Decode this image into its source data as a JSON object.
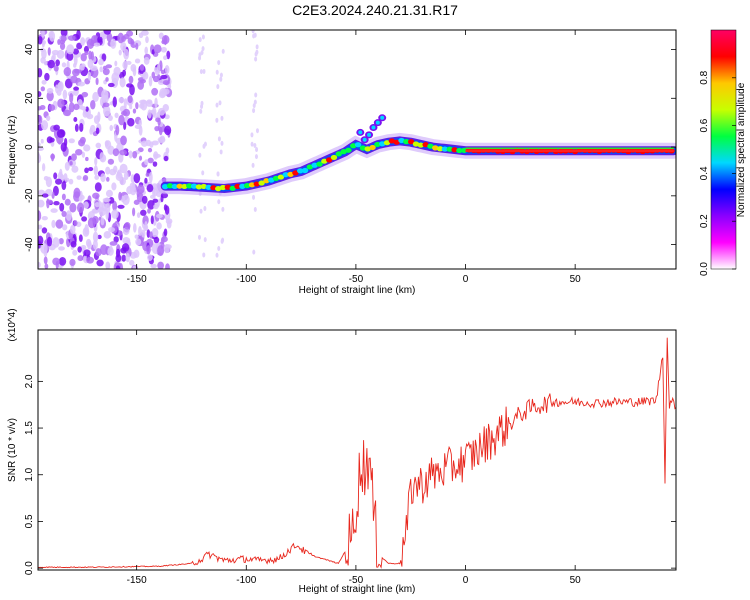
{
  "title": "C2E3.2024.240.21.31.R17",
  "chart_data": [
    {
      "type": "heatmap",
      "xlabel": "Height of straight line (km)",
      "ylabel": "Frequency (Hz)",
      "xlim": [
        -195,
        96
      ],
      "ylim": [
        -50,
        48
      ],
      "x_ticks": [
        -150,
        -100,
        -50,
        0,
        50
      ],
      "y_ticks": [
        -40,
        -20,
        0,
        20,
        40
      ],
      "grid": false,
      "colorbar": {
        "label": "Normalized spectral amplitude",
        "range": [
          0.0,
          1.0
        ],
        "ticks": [
          "0.0",
          "0.2",
          "0.4",
          "0.6",
          "0.8"
        ],
        "colormap": [
          "#ffffff",
          "#ff00ff",
          "#8a00ff",
          "#0000ff",
          "#00d8ff",
          "#00ff40",
          "#c8ff00",
          "#ffc800",
          "#ff0000",
          "#ff0064"
        ]
      },
      "ridge": {
        "x": [
          -137,
          -130,
          -120,
          -110,
          -100,
          -95,
          -90,
          -85,
          -80,
          -75,
          -70,
          -65,
          -60,
          -55,
          -50,
          -45,
          -40,
          -35,
          -30,
          -25,
          -20,
          -15,
          -10,
          -5,
          0,
          10,
          20,
          40,
          60,
          80,
          95
        ],
        "y": [
          -16,
          -16,
          -16.5,
          -17,
          -16,
          -15,
          -14,
          -12.5,
          -11,
          -10,
          -8,
          -6,
          -4,
          -2,
          1,
          -1,
          1,
          2,
          2.5,
          2,
          1,
          0,
          -0.5,
          -1,
          -1.5,
          -1.5,
          -1.5,
          -1.5,
          -1.5,
          -1.5,
          -1.5
        ]
      },
      "noise_region_x": [
        -195,
        -135
      ]
    },
    {
      "type": "line",
      "xlabel": "Height of straight line (km)",
      "ylabel": "SNR (10 * v/v)",
      "y_multiplier": "(x10^4)",
      "xlim": [
        -195,
        96
      ],
      "ylim": [
        -0.02,
        2.55
      ],
      "x_ticks": [
        -150,
        -100,
        -50,
        0,
        50
      ],
      "y_ticks": [
        0.0,
        0.5,
        1.0,
        1.5,
        2.0
      ],
      "color": "#e8281e",
      "series": [
        {
          "x": [
            -195,
            -170,
            -140,
            -125,
            -120,
            -117,
            -110,
            -100,
            -95,
            -85,
            -80,
            -77,
            -72,
            -65,
            -58,
            -52,
            -50,
            -48,
            -46,
            -44,
            -42,
            -40,
            -35,
            -30,
            -27,
            -25,
            -22,
            -20,
            -15,
            -10,
            -5,
            0,
            5,
            10,
            15,
            20,
            25,
            30,
            35,
            40,
            50,
            60,
            70,
            80,
            87,
            90,
            91,
            92,
            93,
            95,
            96
          ],
          "y": [
            0.01,
            0.01,
            0.02,
            0.05,
            0.1,
            0.15,
            0.08,
            0.1,
            0.08,
            0.1,
            0.2,
            0.25,
            0.15,
            0.1,
            0.05,
            0.3,
            0.7,
            1.05,
            1.1,
            1.2,
            0.6,
            0.15,
            0.05,
            0.05,
            0.35,
            0.85,
            0.9,
            0.9,
            1.0,
            1.05,
            1.1,
            1.15,
            1.25,
            1.35,
            1.45,
            1.55,
            1.65,
            1.72,
            1.75,
            1.78,
            1.78,
            1.77,
            1.78,
            1.78,
            1.8,
            2.3,
            0.95,
            2.45,
            1.75,
            1.78,
            1.72
          ]
        }
      ]
    }
  ]
}
